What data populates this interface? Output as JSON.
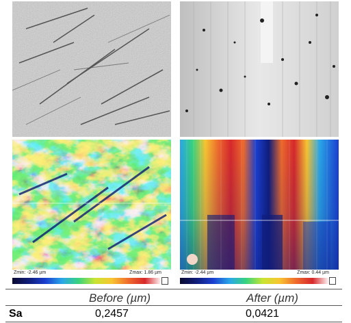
{
  "images": {
    "before_surface": {
      "alt": "before-surface-image"
    },
    "after_surface": {
      "alt": "after-surface-image"
    },
    "before_height_map": {
      "alt": "before-height-map"
    },
    "after_height_map": {
      "alt": "after-height-map"
    }
  },
  "scales": {
    "before": {
      "zmin": "Zmin: -2.46 µm",
      "zmax": "Zmax: 1.86 µm"
    },
    "after": {
      "zmin": "Zmin: -2.44 µm",
      "zmax": "Zmax: 0.44 µm"
    }
  },
  "table": {
    "headers": [
      "Before (µm)",
      "After (µm)"
    ],
    "rows": [
      {
        "label": "Sa",
        "before": "0,2457",
        "after": "0,0421"
      }
    ]
  },
  "colors": {
    "colormap": [
      "#0a0a30",
      "#0f1d7a",
      "#1a3fd0",
      "#2aa7e8",
      "#37d37d",
      "#c9e432",
      "#f8c531",
      "#ef6b2c",
      "#d7282b",
      "#ffffff"
    ]
  }
}
